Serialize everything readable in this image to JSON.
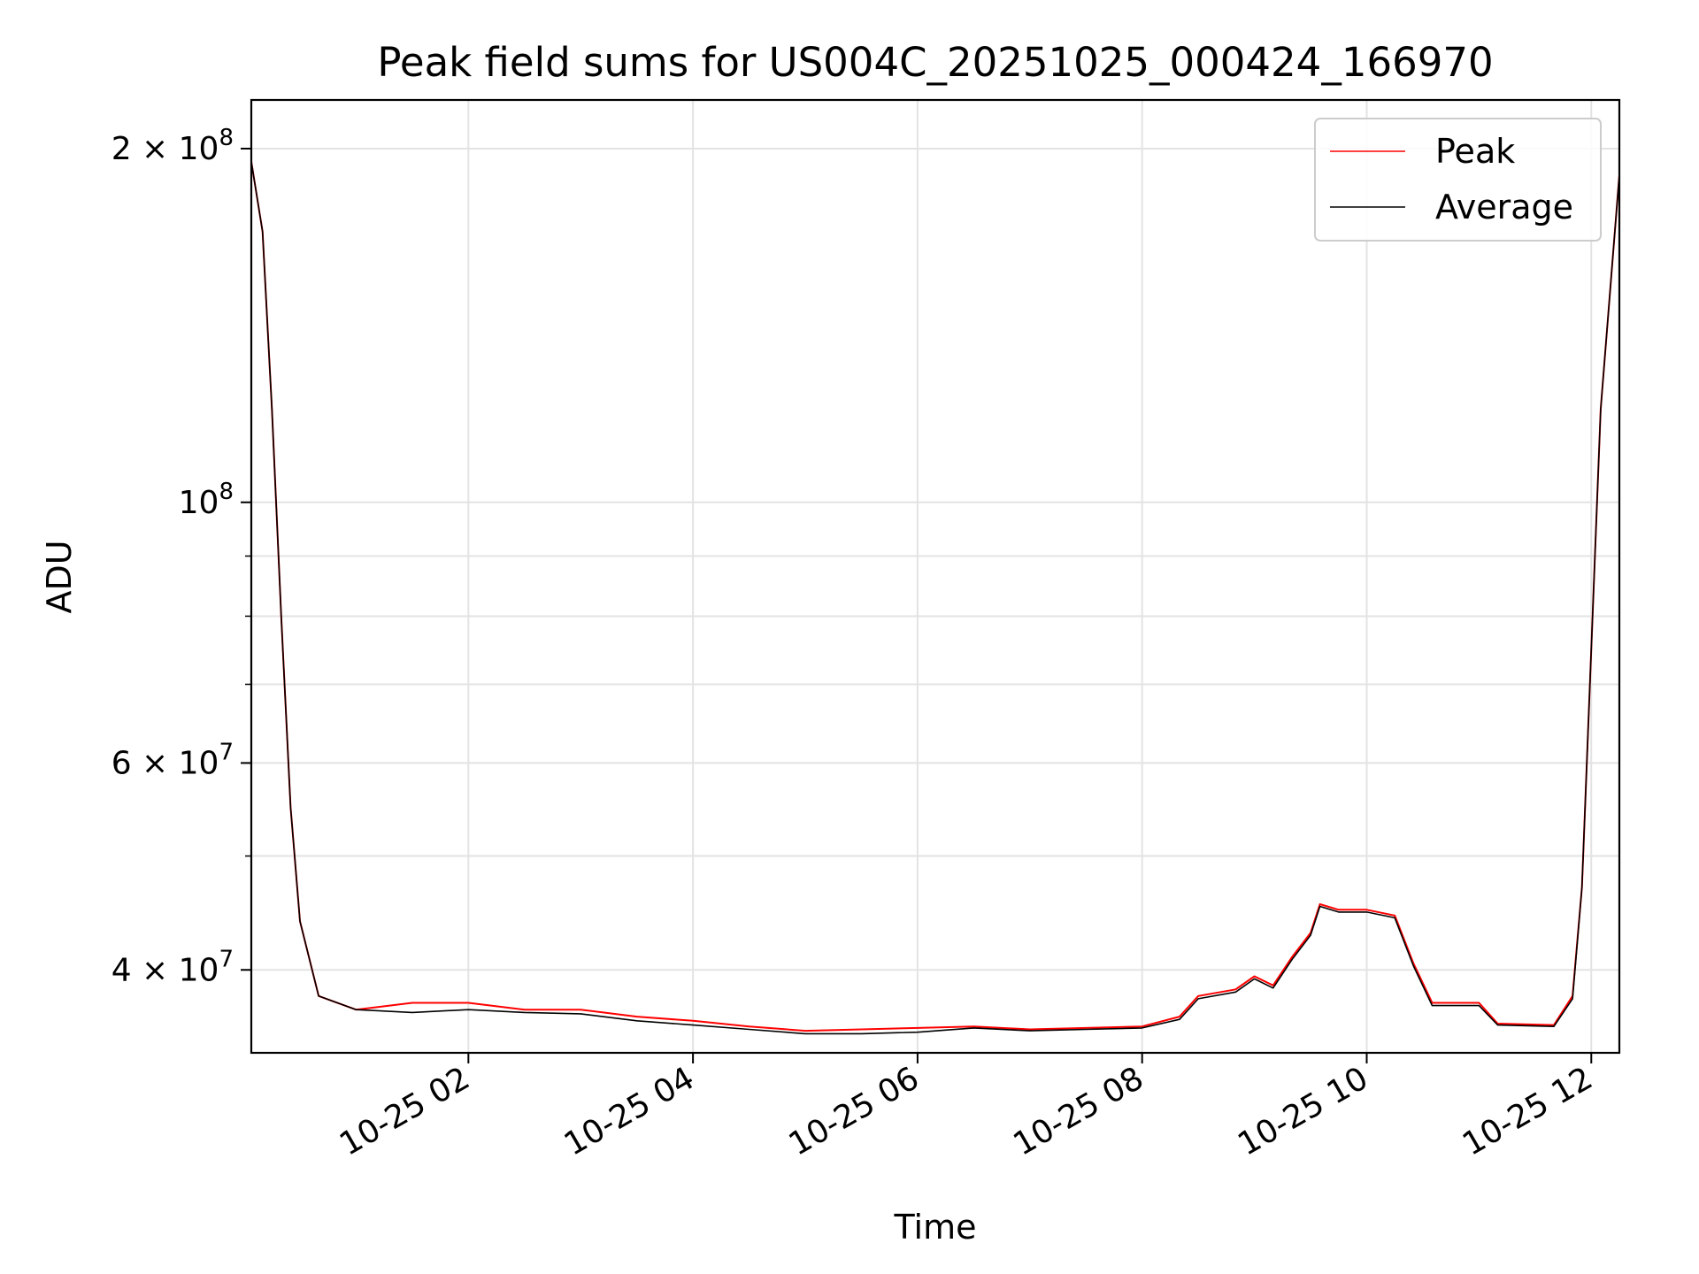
{
  "chart_data": {
    "type": "line",
    "title": "Peak field sums for US004C_20251025_000424_166970",
    "xlabel": "Time",
    "ylabel": "ADU",
    "x_axis_type": "date",
    "xlim": [
      "2025-10-25T00:04",
      "2025-10-25T12:15"
    ],
    "x_ticks": [
      "10-25 02",
      "10-25 04",
      "10-25 06",
      "10-25 08",
      "10-25 10",
      "10-25 12"
    ],
    "y_scale": "log",
    "ylim": [
      34000000,
      220000000
    ],
    "y_ticks": [
      {
        "value": 40000000,
        "base": "4 × 10",
        "exp": "7"
      },
      {
        "value": 60000000,
        "base": "6 × 10",
        "exp": "7"
      },
      {
        "value": 100000000,
        "base": "10",
        "exp": "8"
      },
      {
        "value": 200000000,
        "base": "2 × 10",
        "exp": "8"
      }
    ],
    "grid": true,
    "legend_position": "top-right",
    "series": [
      {
        "name": "Peak",
        "color": "#ff0000",
        "points": [
          [
            "2025-10-25T00:04",
            195000000
          ],
          [
            "2025-10-25T00:10",
            170000000
          ],
          [
            "2025-10-25T00:15",
            120000000
          ],
          [
            "2025-10-25T00:20",
            80000000
          ],
          [
            "2025-10-25T00:25",
            55000000
          ],
          [
            "2025-10-25T00:30",
            44000000
          ],
          [
            "2025-10-25T00:40",
            38000000
          ],
          [
            "2025-10-25T01:00",
            37000000
          ],
          [
            "2025-10-25T01:30",
            37500000
          ],
          [
            "2025-10-25T02:00",
            37500000
          ],
          [
            "2025-10-25T02:30",
            37000000
          ],
          [
            "2025-10-25T03:00",
            37000000
          ],
          [
            "2025-10-25T03:30",
            36500000
          ],
          [
            "2025-10-25T04:00",
            36200000
          ],
          [
            "2025-10-25T04:30",
            35800000
          ],
          [
            "2025-10-25T05:00",
            35500000
          ],
          [
            "2025-10-25T05:30",
            35600000
          ],
          [
            "2025-10-25T06:00",
            35700000
          ],
          [
            "2025-10-25T06:30",
            35800000
          ],
          [
            "2025-10-25T07:00",
            35600000
          ],
          [
            "2025-10-25T07:30",
            35700000
          ],
          [
            "2025-10-25T08:00",
            35800000
          ],
          [
            "2025-10-25T08:20",
            36500000
          ],
          [
            "2025-10-25T08:30",
            38000000
          ],
          [
            "2025-10-25T08:50",
            38500000
          ],
          [
            "2025-10-25T09:00",
            39500000
          ],
          [
            "2025-10-25T09:10",
            38800000
          ],
          [
            "2025-10-25T09:20",
            41000000
          ],
          [
            "2025-10-25T09:30",
            43000000
          ],
          [
            "2025-10-25T09:35",
            45500000
          ],
          [
            "2025-10-25T09:45",
            45000000
          ],
          [
            "2025-10-25T10:00",
            45000000
          ],
          [
            "2025-10-25T10:15",
            44500000
          ],
          [
            "2025-10-25T10:25",
            40500000
          ],
          [
            "2025-10-25T10:35",
            37500000
          ],
          [
            "2025-10-25T11:00",
            37500000
          ],
          [
            "2025-10-25T11:10",
            36000000
          ],
          [
            "2025-10-25T11:40",
            35900000
          ],
          [
            "2025-10-25T11:50",
            38000000
          ],
          [
            "2025-10-25T11:55",
            47000000
          ],
          [
            "2025-10-25T12:05",
            120000000
          ],
          [
            "2025-10-25T12:15",
            190000000
          ]
        ]
      },
      {
        "name": "Average",
        "color": "#000000",
        "points": [
          [
            "2025-10-25T00:04",
            195000000
          ],
          [
            "2025-10-25T00:10",
            170000000
          ],
          [
            "2025-10-25T00:15",
            120000000
          ],
          [
            "2025-10-25T00:20",
            80000000
          ],
          [
            "2025-10-25T00:25",
            55000000
          ],
          [
            "2025-10-25T00:30",
            44000000
          ],
          [
            "2025-10-25T00:40",
            38000000
          ],
          [
            "2025-10-25T01:00",
            37000000
          ],
          [
            "2025-10-25T01:30",
            36800000
          ],
          [
            "2025-10-25T02:00",
            37000000
          ],
          [
            "2025-10-25T02:30",
            36800000
          ],
          [
            "2025-10-25T03:00",
            36700000
          ],
          [
            "2025-10-25T03:30",
            36200000
          ],
          [
            "2025-10-25T04:00",
            35900000
          ],
          [
            "2025-10-25T04:30",
            35600000
          ],
          [
            "2025-10-25T05:00",
            35300000
          ],
          [
            "2025-10-25T05:30",
            35300000
          ],
          [
            "2025-10-25T06:00",
            35400000
          ],
          [
            "2025-10-25T06:30",
            35700000
          ],
          [
            "2025-10-25T07:00",
            35500000
          ],
          [
            "2025-10-25T07:30",
            35600000
          ],
          [
            "2025-10-25T08:00",
            35700000
          ],
          [
            "2025-10-25T08:20",
            36300000
          ],
          [
            "2025-10-25T08:30",
            37800000
          ],
          [
            "2025-10-25T08:50",
            38300000
          ],
          [
            "2025-10-25T09:00",
            39300000
          ],
          [
            "2025-10-25T09:10",
            38600000
          ],
          [
            "2025-10-25T09:20",
            40800000
          ],
          [
            "2025-10-25T09:30",
            42800000
          ],
          [
            "2025-10-25T09:35",
            45300000
          ],
          [
            "2025-10-25T09:45",
            44800000
          ],
          [
            "2025-10-25T10:00",
            44800000
          ],
          [
            "2025-10-25T10:15",
            44300000
          ],
          [
            "2025-10-25T10:25",
            40300000
          ],
          [
            "2025-10-25T10:35",
            37300000
          ],
          [
            "2025-10-25T11:00",
            37300000
          ],
          [
            "2025-10-25T11:10",
            35900000
          ],
          [
            "2025-10-25T11:40",
            35800000
          ],
          [
            "2025-10-25T11:50",
            37800000
          ],
          [
            "2025-10-25T11:55",
            47000000
          ],
          [
            "2025-10-25T12:05",
            120000000
          ],
          [
            "2025-10-25T12:15",
            190000000
          ]
        ]
      }
    ]
  }
}
